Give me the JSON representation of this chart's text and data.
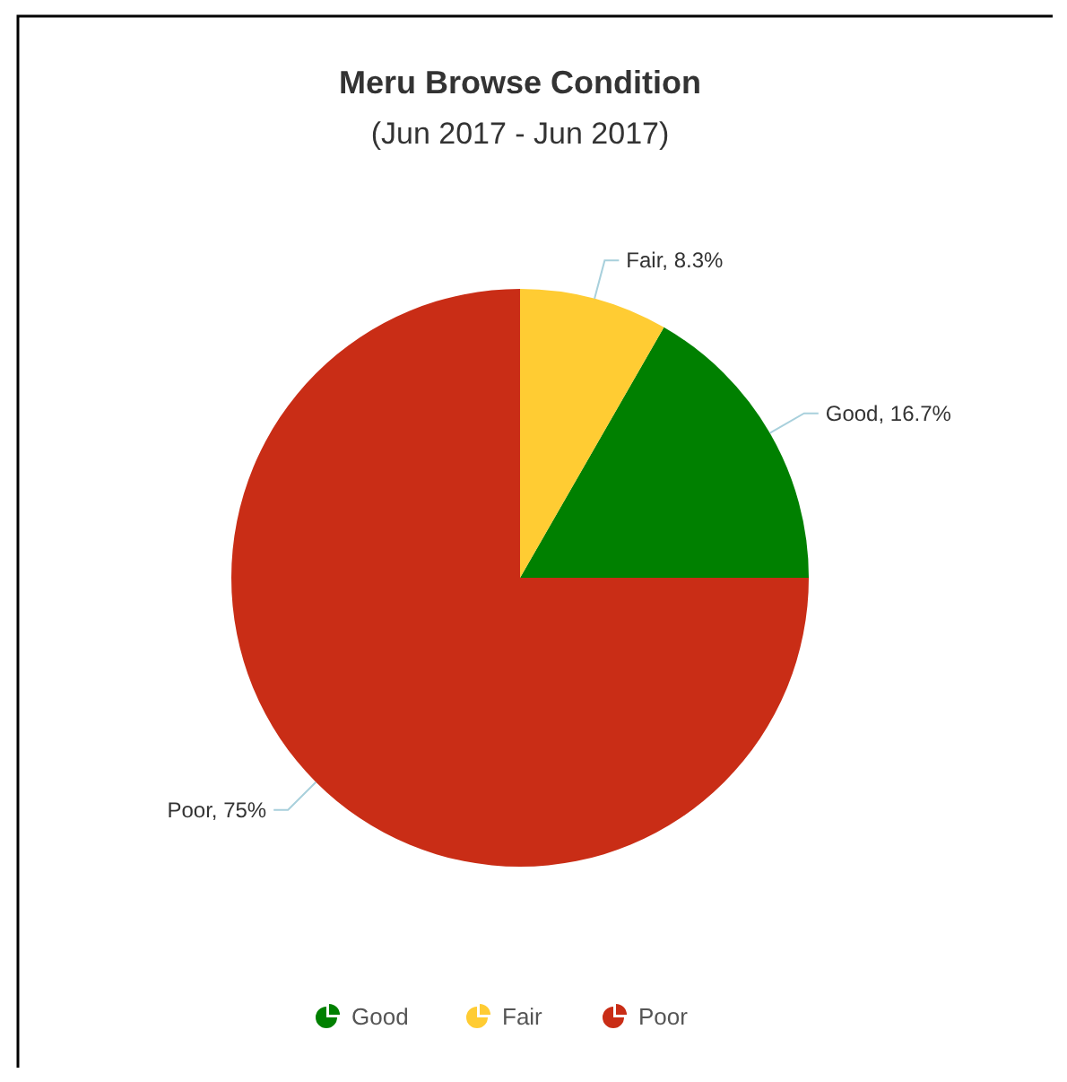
{
  "chart_data": {
    "type": "pie",
    "title": "Meru Browse Condition",
    "subtitle": "(Jun 2017 - Jun 2017)",
    "categories": [
      "Good",
      "Fair",
      "Poor"
    ],
    "values": [
      16.7,
      8.3,
      75
    ],
    "colors": [
      "#008000",
      "#ffcc33",
      "#c92d16"
    ],
    "value_labels": [
      "Good, 16.7%",
      "Fair, 8.3%",
      "Poor, 75%"
    ],
    "legend": "bottom"
  }
}
